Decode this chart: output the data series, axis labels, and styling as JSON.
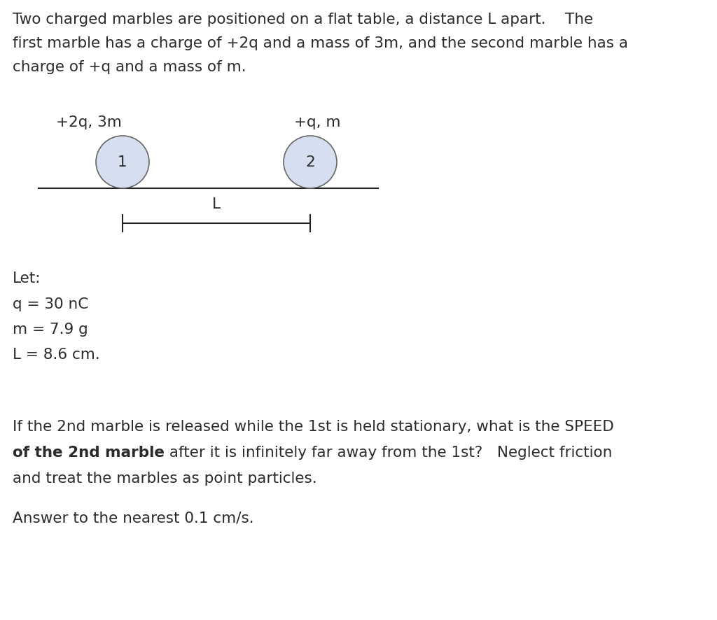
{
  "bg_color": "#ffffff",
  "text_color": "#2b2b2b",
  "para1_line1": "Two charged marbles are positioned on a flat table, a distance L apart.    The",
  "para1_line2": "first marble has a charge of +2q and a mass of 3m, and the second marble has a",
  "para1_line3": "charge of +q and a mass of m.",
  "label1": "+2q, 3m",
  "label2": "+q, m",
  "marble1_num": "1",
  "marble2_num": "2",
  "dim_label": "L",
  "let_label": "Let:",
  "q_val": "q = 30 nC",
  "m_val": "m = 7.9 g",
  "L_val": "L = 8.6 cm.",
  "question_line1": "If the 2nd marble is released while the 1st is held stationary, what is the SPEED",
  "question_line2_bold": "of the 2nd marble",
  "question_line2_rest": " after it is infinitely far away from the 1st?   Neglect friction",
  "question_line3": "and treat the marbles as point particles.",
  "answer_line": "Answer to the nearest 0.1 cm/s.",
  "font_size_main": 15.5,
  "marble_circle_color": "#d6dff0",
  "marble_circle_edge": "#666666",
  "table_line_color": "#222222",
  "dim_line_color": "#222222",
  "fig_width": 10.24,
  "fig_height": 8.87,
  "dpi": 100
}
